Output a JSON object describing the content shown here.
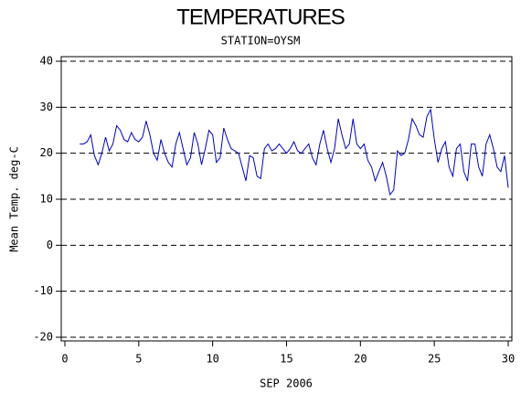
{
  "chart_data": {
    "type": "line",
    "title": "TEMPERATURES",
    "subtitle": "STATION=OYSM",
    "xlabel": "SEP 2006",
    "ylabel": "Mean Temp. deg-C",
    "xlim": [
      0,
      30
    ],
    "xticks": [
      0,
      5,
      10,
      15,
      20,
      25,
      30
    ],
    "ylim": [
      -20,
      40
    ],
    "yticks": [
      -20,
      -10,
      0,
      10,
      20,
      30,
      40
    ],
    "grid": true,
    "x": [
      1.0,
      1.25,
      1.5,
      1.75,
      2.0,
      2.25,
      2.5,
      2.75,
      3.0,
      3.25,
      3.5,
      3.75,
      4.0,
      4.25,
      4.5,
      4.75,
      5.0,
      5.25,
      5.5,
      5.75,
      6.0,
      6.25,
      6.5,
      6.75,
      7.0,
      7.25,
      7.5,
      7.75,
      8.0,
      8.25,
      8.5,
      8.75,
      9.0,
      9.25,
      9.5,
      9.75,
      10.0,
      10.25,
      10.5,
      10.75,
      11.0,
      11.25,
      11.5,
      11.75,
      12.0,
      12.25,
      12.5,
      12.75,
      13.0,
      13.25,
      13.5,
      13.75,
      14.0,
      14.25,
      14.5,
      14.75,
      15.0,
      15.25,
      15.5,
      15.75,
      16.0,
      16.25,
      16.5,
      16.75,
      17.0,
      17.25,
      17.5,
      17.75,
      18.0,
      18.25,
      18.5,
      18.75,
      19.0,
      19.25,
      19.5,
      19.75,
      20.0,
      20.25,
      20.5,
      20.75,
      21.0,
      21.25,
      21.5,
      21.75,
      22.0,
      22.25,
      22.5,
      22.75,
      23.0,
      23.25,
      23.5,
      23.75,
      24.0,
      24.25,
      24.5,
      24.75,
      25.0,
      25.25,
      25.5,
      25.75,
      26.0,
      26.25,
      26.5,
      26.75,
      27.0,
      27.25,
      27.5,
      27.75,
      28.0,
      28.25,
      28.5,
      28.75,
      29.0,
      29.25,
      29.5,
      29.75,
      30.0
    ],
    "series": [
      {
        "color": "#0000cc",
        "values": [
          22,
          22,
          22.5,
          24,
          19.5,
          17.5,
          20,
          23.5,
          20.5,
          22,
          26,
          25,
          23,
          22.5,
          24.5,
          23,
          22.5,
          23.5,
          27,
          24,
          20,
          18.5,
          23,
          20,
          18,
          17,
          22,
          24.5,
          21,
          17.5,
          19,
          24.5,
          22,
          17.5,
          21,
          25,
          24,
          18,
          19,
          25.5,
          23,
          21,
          20.5,
          20,
          17,
          14,
          19.5,
          19,
          15,
          14.5,
          21,
          22,
          20.5,
          21,
          22,
          21,
          20,
          21,
          22.5,
          20.5,
          20,
          21,
          22,
          19,
          17.5,
          22,
          25,
          21,
          18,
          21,
          27.5,
          24,
          21,
          22,
          27.5,
          22,
          21,
          22,
          18.5,
          17,
          14,
          16,
          18,
          15,
          11,
          12,
          20.5,
          19.5,
          20,
          23,
          27.5,
          26,
          24,
          23.5,
          28,
          29.5,
          23,
          18,
          21,
          22.5,
          17,
          15,
          21,
          22,
          16,
          14,
          22,
          22,
          17,
          15,
          22,
          24,
          21,
          17,
          16,
          19.5,
          12.5
        ]
      }
    ]
  }
}
